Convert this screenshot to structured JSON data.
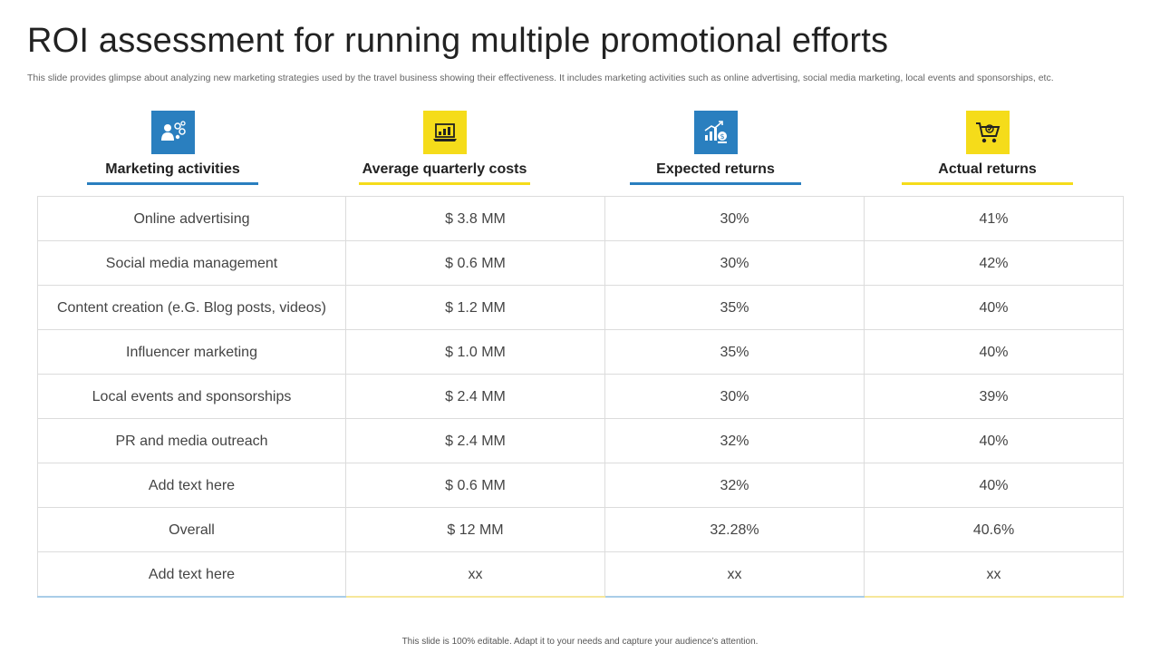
{
  "slide": {
    "title": "ROI assessment for running multiple promotional efforts",
    "subtitle": "This slide provides glimpse about analyzing new marketing strategies used by the travel business showing their effectiveness. It includes marketing activities such as online advertising, social media marketing, local events and sponsorships, etc.",
    "footer": "This slide is 100% editable. Adapt it to your needs and capture your audience’s attention."
  },
  "colors": {
    "blue": "#2a7fbf",
    "yellow": "#f5dc1a"
  },
  "columns": [
    {
      "label": "Marketing activities",
      "icon": "marketing-people-icon",
      "accent": "blue"
    },
    {
      "label": "Average quarterly costs",
      "icon": "laptop-chart-icon",
      "accent": "yellow"
    },
    {
      "label": "Expected returns",
      "icon": "growth-money-icon",
      "accent": "blue"
    },
    {
      "label": "Actual returns",
      "icon": "shopping-cart-icon",
      "accent": "yellow"
    }
  ],
  "rows": [
    [
      "Online advertising",
      "$ 3.8 MM",
      "30%",
      "41%"
    ],
    [
      "Social media management",
      "$ 0.6 MM",
      "30%",
      "42%"
    ],
    [
      "Content creation (e.G. Blog posts, videos)",
      "$ 1.2 MM",
      "35%",
      "40%"
    ],
    [
      "Influencer  marketing",
      "$ 1.0 MM",
      "35%",
      "40%"
    ],
    [
      "Local events  and sponsorships",
      "$ 2.4 MM",
      "30%",
      "39%"
    ],
    [
      "PR and media outreach",
      "$ 2.4 MM",
      "32%",
      "40%"
    ],
    [
      "Add text here",
      "$ 0.6 MM",
      "32%",
      "40%"
    ],
    [
      "Overall",
      "$ 12 MM",
      "32.28%",
      "40.6%"
    ],
    [
      "Add text here",
      "xx",
      "xx",
      "xx"
    ]
  ]
}
